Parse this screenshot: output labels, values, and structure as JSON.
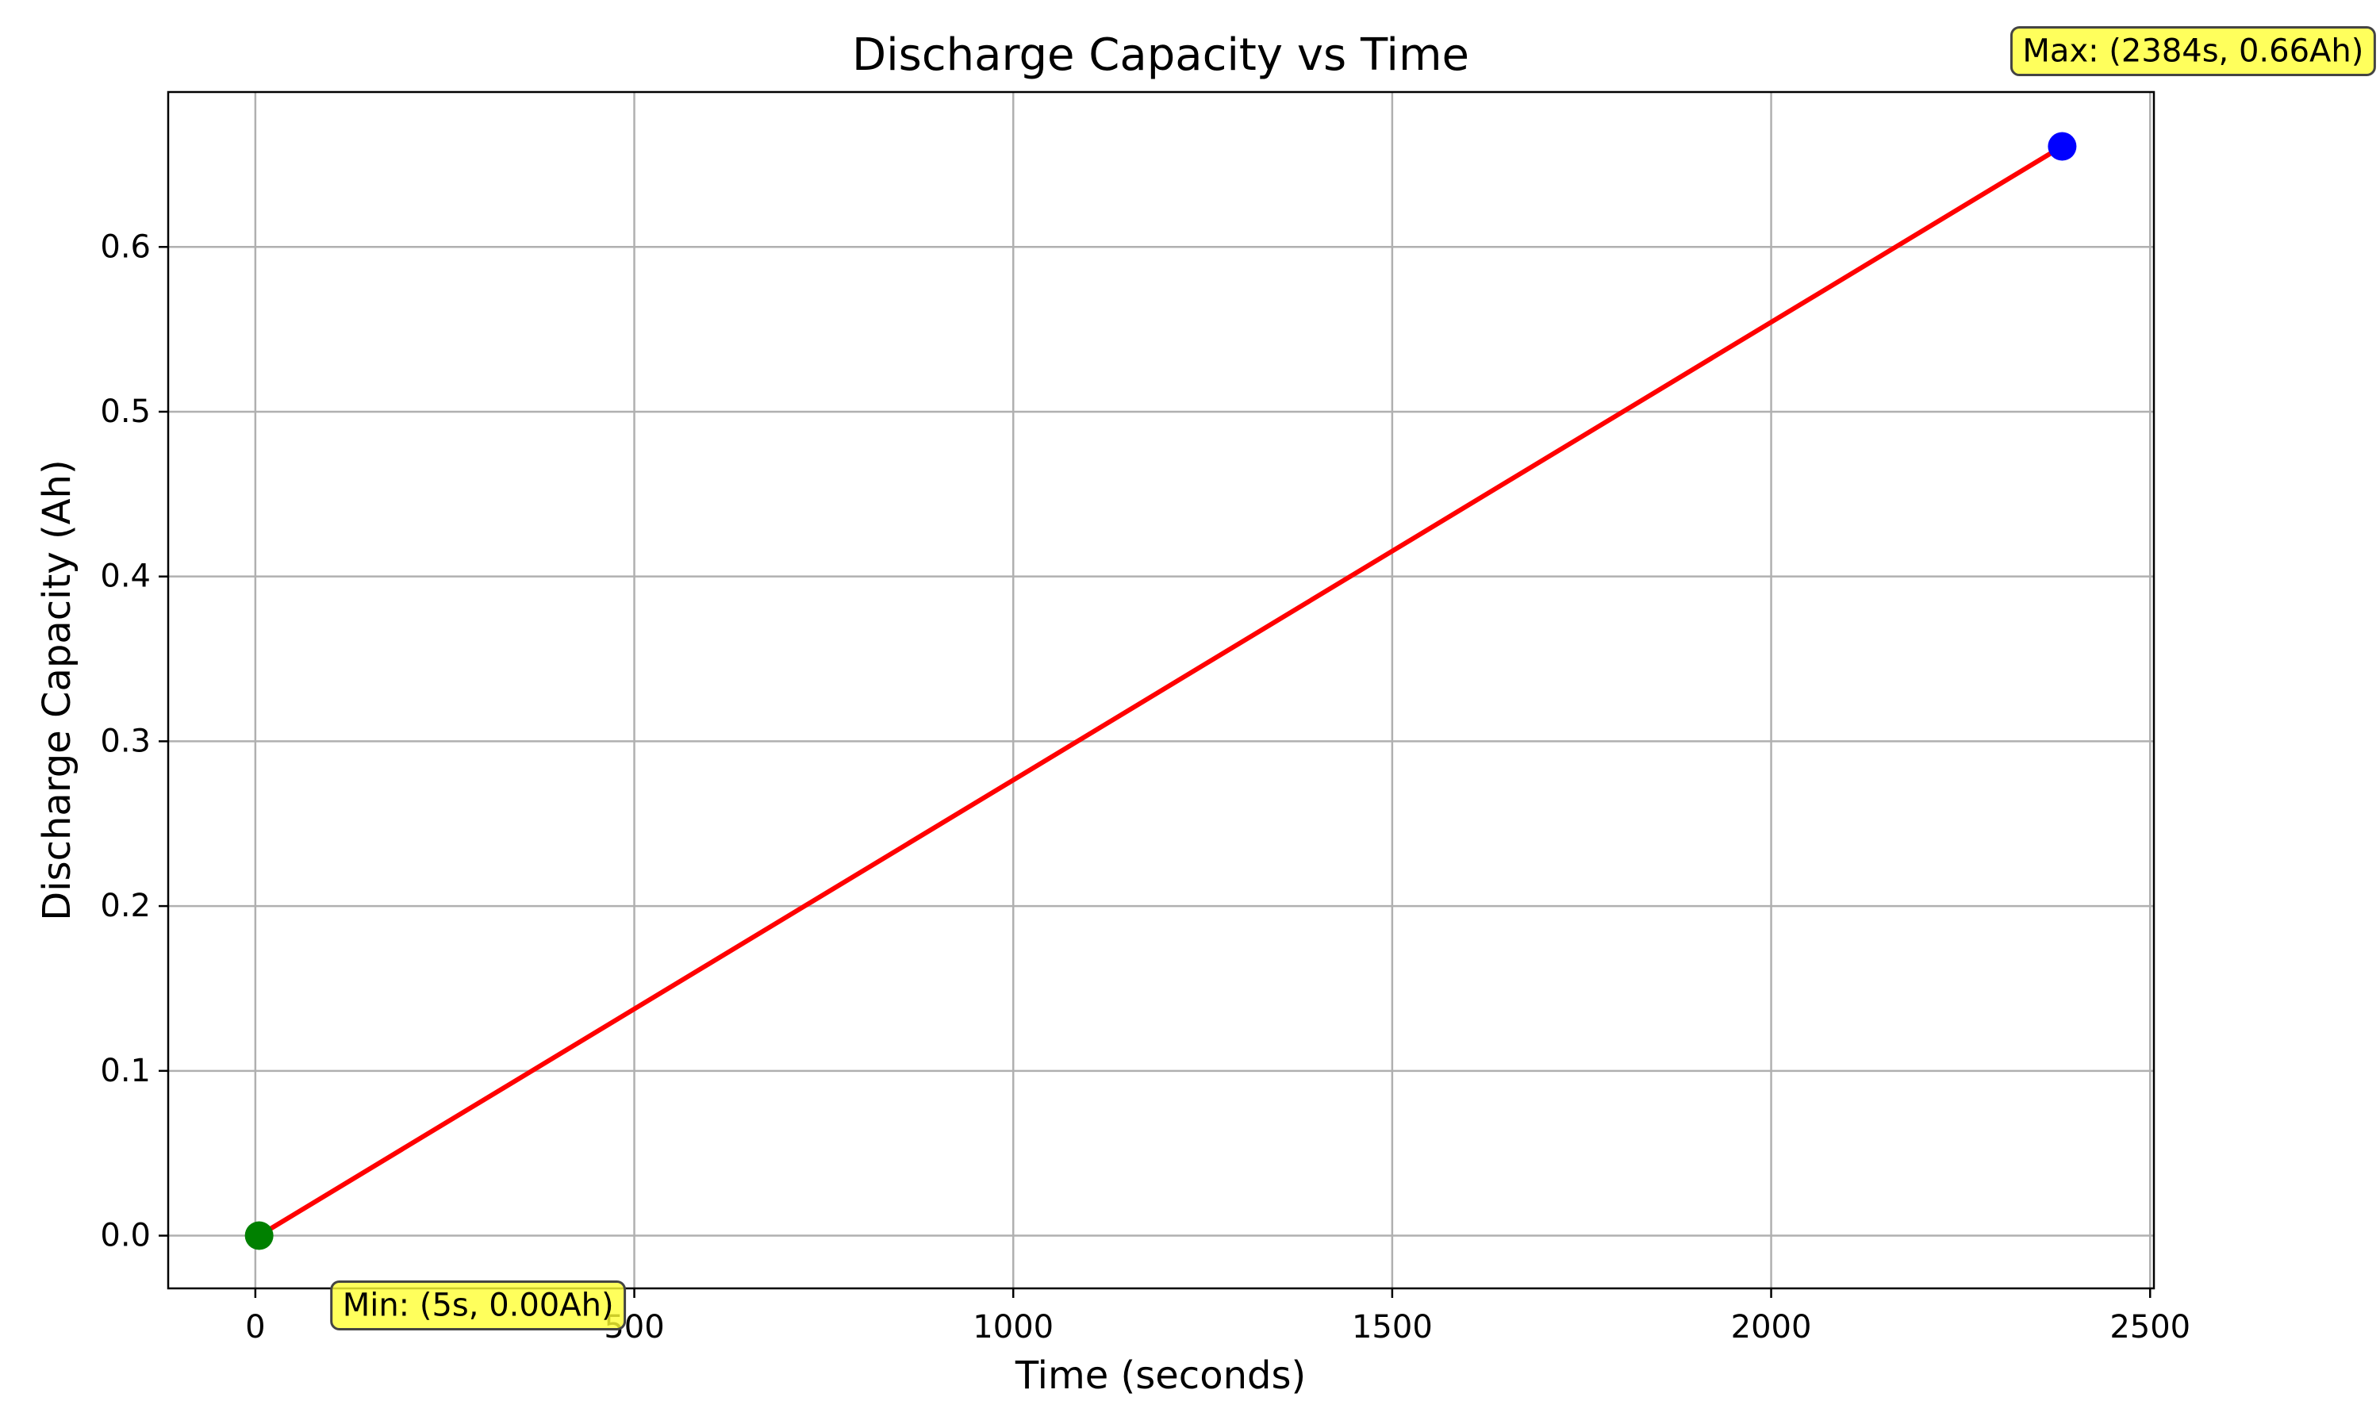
{
  "chart_data": {
    "type": "line",
    "title": "Discharge Capacity vs Time",
    "xlabel": "Time (seconds)",
    "ylabel": "Discharge Capacity (Ah)",
    "xlim": [
      -115,
      2505
    ],
    "ylim": [
      -0.032,
      0.694
    ],
    "grid": true,
    "x_ticks": [
      0,
      500,
      1000,
      1500,
      2000,
      2500
    ],
    "y_ticks": [
      0.0,
      0.1,
      0.2,
      0.3,
      0.4,
      0.5,
      0.6
    ],
    "x_tick_labels": [
      "0",
      "500",
      "1000",
      "1500",
      "2000",
      "2500"
    ],
    "y_tick_labels": [
      "0.0",
      "0.1",
      "0.2",
      "0.3",
      "0.4",
      "0.5",
      "0.6"
    ],
    "series": [
      {
        "color": "#ff0000",
        "x": [
          5,
          2384
        ],
        "y": [
          0.0,
          0.661
        ]
      }
    ],
    "markers": {
      "min": {
        "x": 5,
        "y": 0.0,
        "color": "#008000"
      },
      "max": {
        "x": 2384,
        "y": 0.661,
        "color": "#0000ff"
      }
    },
    "annotations": {
      "max_label": "Max: (2384s, 0.66Ah)",
      "min_label": "Min: (5s, 0.00Ah)",
      "box_color": "#ffff33"
    }
  }
}
